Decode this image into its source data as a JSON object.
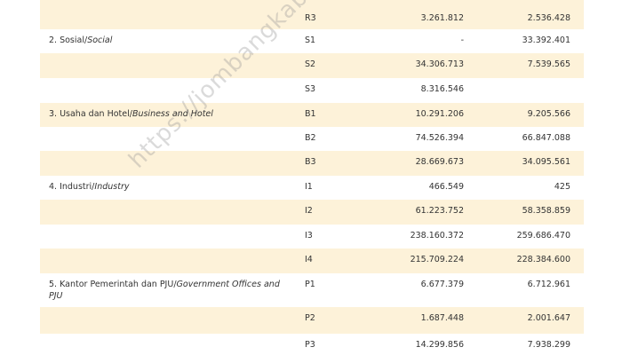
{
  "table": {
    "rows": [
      {
        "label": null,
        "code": "R3",
        "v1": "3.261.812",
        "v2": "2.536.428"
      },
      {
        "label": {
          "text": "2. Sosial/",
          "italic": "Social"
        },
        "code": "S1",
        "v1": "-",
        "v2": "33.392.401"
      },
      {
        "label": null,
        "code": "S2",
        "v1": "34.306.713",
        "v2": "7.539.565"
      },
      {
        "label": null,
        "code": "S3",
        "v1": "8.316.546",
        "v2": null
      },
      {
        "label": {
          "text": "3. Usaha dan Hotel/",
          "italic": "Business and Hotel"
        },
        "code": "B1",
        "v1": "10.291.206",
        "v2": "9.205.566"
      },
      {
        "label": null,
        "code": "B2",
        "v1": "74.526.394",
        "v2": "66.847.088"
      },
      {
        "label": null,
        "code": "B3",
        "v1": "28.669.673",
        "v2": "34.095.561"
      },
      {
        "label": {
          "text": "4. Industri/",
          "italic": "Industry"
        },
        "code": "I1",
        "v1": "466.549",
        "v2": "425"
      },
      {
        "label": null,
        "code": "I2",
        "v1": "61.223.752",
        "v2": "58.358.859"
      },
      {
        "label": null,
        "code": "I3",
        "v1": "238.160.372",
        "v2": "259.686.470"
      },
      {
        "label": null,
        "code": "I4",
        "v1": "215.709.224",
        "v2": "228.384.600"
      },
      {
        "label": {
          "text": "5. Kantor Pemerintah dan PJU/",
          "italic": "Government Offices and PJU"
        },
        "code": "P1",
        "v1": "6.677.379",
        "v2": "6.712.961"
      },
      {
        "label": null,
        "code": "P2",
        "v1": "1.687.448",
        "v2": "2.001.647"
      },
      {
        "label": null,
        "code": "P3",
        "v1": "14.299.856",
        "v2": "7.938.299"
      }
    ]
  },
  "watermark": "https://jombangkab.bps.go.id"
}
